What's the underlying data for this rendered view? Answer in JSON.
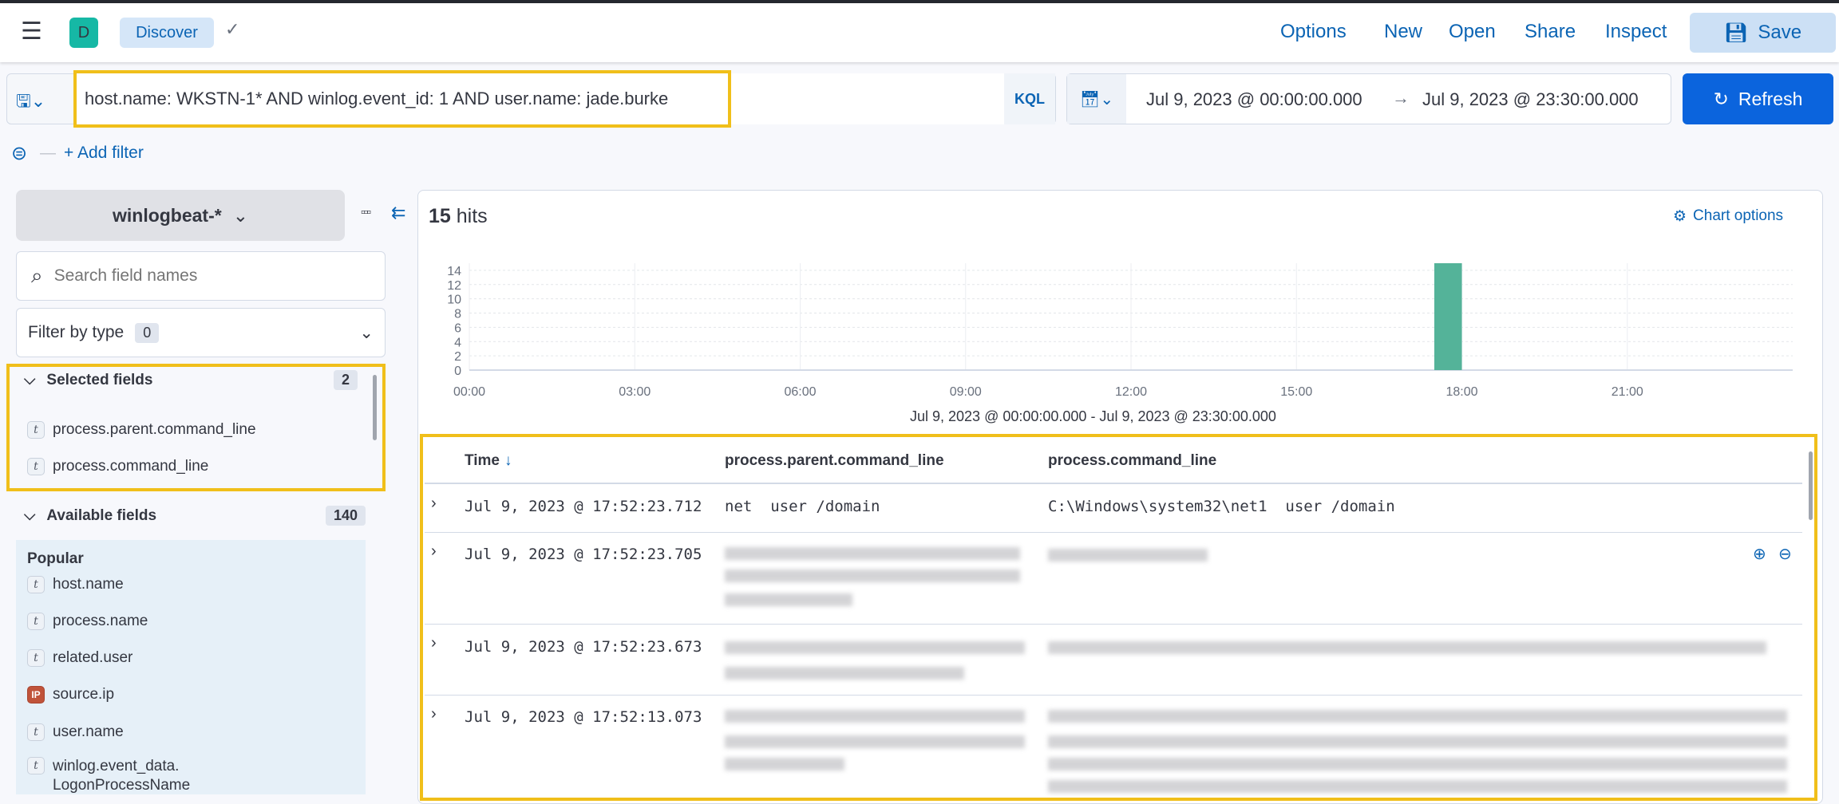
{
  "header": {
    "app_initial": "D",
    "app_color": "#16b8a5",
    "breadcrumb": "Discover",
    "nav": [
      "Options",
      "New",
      "Open",
      "Share",
      "Inspect"
    ],
    "save_label": "Save"
  },
  "query": {
    "value": "host.name: WKSTN-1* AND winlog.event_id: 1 AND user.name: jade.burke",
    "language": "KQL"
  },
  "date": {
    "start": "Jul 9, 2023 @ 00:00:00.000",
    "end": "Jul 9, 2023 @ 23:30:00.000",
    "refresh_label": "Refresh"
  },
  "filter": {
    "add_label": "+ Add filter"
  },
  "sidebar": {
    "index_pattern": "winlogbeat-*",
    "search_placeholder": "Search field names",
    "filter_by_type": "Filter by type",
    "filter_count": "0",
    "selected_label": "Selected fields",
    "selected_count": "2",
    "selected": [
      {
        "type": "t",
        "name": "process.parent.command_line"
      },
      {
        "type": "t",
        "name": "process.command_line"
      }
    ],
    "available_label": "Available fields",
    "available_count": "140",
    "popular_label": "Popular",
    "popular": [
      {
        "type": "t",
        "name": "host.name"
      },
      {
        "type": "t",
        "name": "process.name"
      },
      {
        "type": "t",
        "name": "related.user"
      },
      {
        "type": "IP",
        "name": "source.ip"
      },
      {
        "type": "t",
        "name": "user.name"
      },
      {
        "type": "t",
        "name": "winlog.event_data.",
        "name2": "LogonProcessName"
      }
    ]
  },
  "main": {
    "hits_count": "15",
    "hits_label": "hits",
    "chart_options": "Chart options",
    "range_label": "Jul 9, 2023 @ 00:00:00.000 - Jul 9, 2023 @ 23:30:00.000"
  },
  "chart_data": {
    "type": "bar",
    "x_ticks": [
      "00:00",
      "03:00",
      "06:00",
      "09:00",
      "12:00",
      "15:00",
      "18:00",
      "21:00"
    ],
    "y_ticks": [
      "0",
      "2",
      "4",
      "6",
      "8",
      "10",
      "12",
      "14"
    ],
    "ylim": [
      0,
      15
    ],
    "xlim": [
      "00:00",
      "23:30"
    ],
    "bars": [
      {
        "x": "17:30",
        "value": 15
      }
    ],
    "bar_color": "#54b399",
    "grid": true
  },
  "table": {
    "columns": [
      "Time",
      "process.parent.command_line",
      "process.command_line"
    ],
    "rows": [
      {
        "time": "Jul 9, 2023 @ 17:52:23.712",
        "parent": "net  user /domain",
        "cmd": "C:\\Windows\\system32\\net1  user /domain"
      },
      {
        "time": "Jul 9, 2023 @ 17:52:23.705",
        "parent": "",
        "cmd": ""
      },
      {
        "time": "Jul 9, 2023 @ 17:52:23.673",
        "parent": "",
        "cmd": ""
      },
      {
        "time": "Jul 9, 2023 @ 17:52:13.073",
        "parent": "",
        "cmd": ""
      }
    ]
  }
}
